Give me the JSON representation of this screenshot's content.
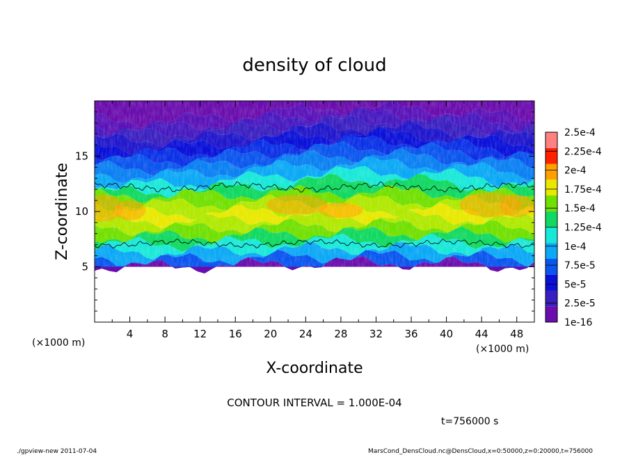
{
  "chart_data": {
    "type": "heatmap",
    "title": "density of cloud",
    "xlabel": "X-coordinate",
    "ylabel": "Z-coordinate",
    "x_unit": "(×1000 m)",
    "y_unit": "(×1000 m)",
    "xlim": [
      0,
      50
    ],
    "ylim": [
      0,
      20
    ],
    "x_ticks": [
      "4",
      "8",
      "12",
      "16",
      "20",
      "24",
      "28",
      "32",
      "36",
      "40",
      "44",
      "48"
    ],
    "y_ticks": [
      "5",
      "10",
      "15"
    ],
    "contour_interval_text": "CONTOUR INTERVAL = 1.000E-04",
    "time_text": "t=756000 s",
    "colorbar": {
      "labels": [
        "1e-16",
        "2.5e-5",
        "5e-5",
        "7.5e-5",
        "1e-4",
        "1.25e-4",
        "1.5e-4",
        "1.75e-4",
        "2e-4",
        "2.25e-4",
        "2.5e-4"
      ],
      "colors": [
        "#6a0dad",
        "#3a1fc0",
        "#0a10d8",
        "#0a55ee",
        "#0aa8f5",
        "#18e8d8",
        "#10d860",
        "#70e000",
        "#e8e800",
        "#ffa000",
        "#ff2000",
        "#ff8080"
      ]
    },
    "profile": {
      "z_top": [
        19.5,
        18.8,
        18.2,
        17.6,
        17.0,
        16.4,
        15.8,
        15.2,
        14.5,
        13.8,
        13.0,
        12.3,
        11.6,
        10.8,
        10.0,
        9.3,
        8.6,
        7.9,
        7.2,
        6.5,
        5.8,
        5.2
      ],
      "colors": [
        "#6a0dad",
        "#5a12b8",
        "#4618c0",
        "#3a1fc0",
        "#2016cc",
        "#0a10d8",
        "#0a30e6",
        "#0a55ee",
        "#0a80f2",
        "#0aa8f5",
        "#18e8d8",
        "#10d860",
        "#70e000",
        "#b0e800",
        "#e8e800",
        "#b0e800",
        "#70e000",
        "#10d860",
        "#18e8d8",
        "#0aa8f5",
        "#0a55ee",
        "#6a0dad"
      ]
    }
  },
  "footer": {
    "left": "./gpview-new  2011-07-04",
    "right": "MarsCond_DensCloud.nc@DensCloud,x=0:50000,z=0:20000,t=756000"
  }
}
